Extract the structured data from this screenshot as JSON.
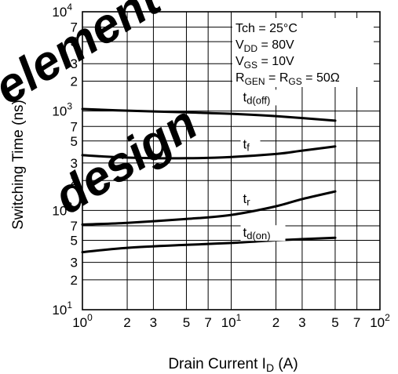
{
  "chart_data": {
    "type": "line",
    "xscale": "log",
    "yscale": "log",
    "xlim": [
      1,
      100
    ],
    "ylim": [
      10,
      10000
    ],
    "grid": true,
    "xlabel": "Drain Current",
    "xlabel_symbol": "I",
    "xlabel_sub": "D",
    "xlabel_unit": "(A)",
    "ylabel": "Switching Time  (ns)",
    "x_ticks": [
      {
        "v": 1,
        "base": "10",
        "exp": "0"
      },
      {
        "v": 2,
        "base": "2",
        "exp": ""
      },
      {
        "v": 3,
        "base": "3",
        "exp": ""
      },
      {
        "v": 5,
        "base": "5",
        "exp": ""
      },
      {
        "v": 7,
        "base": "7",
        "exp": ""
      },
      {
        "v": 10,
        "base": "10",
        "exp": "1"
      },
      {
        "v": 20,
        "base": "2",
        "exp": ""
      },
      {
        "v": 30,
        "base": "3",
        "exp": ""
      },
      {
        "v": 50,
        "base": "5",
        "exp": ""
      },
      {
        "v": 70,
        "base": "7",
        "exp": ""
      },
      {
        "v": 100,
        "base": "10",
        "exp": "2"
      }
    ],
    "y_ticks": [
      {
        "v": 10,
        "base": "10",
        "exp": "1"
      },
      {
        "v": 20,
        "base": "2",
        "exp": ""
      },
      {
        "v": 30,
        "base": "3",
        "exp": ""
      },
      {
        "v": 50,
        "base": "5",
        "exp": ""
      },
      {
        "v": 70,
        "base": "7",
        "exp": ""
      },
      {
        "v": 100,
        "base": "10",
        "exp": "2"
      },
      {
        "v": 200,
        "base": "2",
        "exp": ""
      },
      {
        "v": 300,
        "base": "3",
        "exp": ""
      },
      {
        "v": 500,
        "base": "5",
        "exp": ""
      },
      {
        "v": 700,
        "base": "7",
        "exp": ""
      },
      {
        "v": 1000,
        "base": "10",
        "exp": "3"
      },
      {
        "v": 2000,
        "base": "2",
        "exp": ""
      },
      {
        "v": 3000,
        "base": "3",
        "exp": ""
      },
      {
        "v": 5000,
        "base": "5",
        "exp": ""
      },
      {
        "v": 7000,
        "base": "7",
        "exp": ""
      },
      {
        "v": 10000,
        "base": "10",
        "exp": "4"
      }
    ],
    "conditions": [
      [
        {
          "t": "Tch = 25°C"
        }
      ],
      [
        {
          "t": "V"
        },
        {
          "t": "DD",
          "sub": true
        },
        {
          "t": " = 80V"
        }
      ],
      [
        {
          "t": "V"
        },
        {
          "t": "GS",
          "sub": true
        },
        {
          "t": " = 10V"
        }
      ],
      [
        {
          "t": "R"
        },
        {
          "t": "GEN",
          "sub": true
        },
        {
          "t": " = R"
        },
        {
          "t": "GS",
          "sub": true
        },
        {
          "t": " = 50Ω"
        }
      ]
    ],
    "series": [
      {
        "name": "td(off)",
        "label_base": "t",
        "label_sub": "d(off)",
        "label_at": [
          12,
          1250
        ],
        "x": [
          1,
          2,
          5,
          10,
          20,
          50
        ],
        "y": [
          1050,
          1010,
          970,
          940,
          890,
          800
        ]
      },
      {
        "name": "tf",
        "label_base": "t",
        "label_sub": "f",
        "label_at": [
          12,
          420
        ],
        "x": [
          1,
          2,
          5,
          10,
          20,
          30,
          50
        ],
        "y": [
          360,
          340,
          335,
          345,
          370,
          400,
          440
        ]
      },
      {
        "name": "tr",
        "label_base": "t",
        "label_sub": "r",
        "label_at": [
          12,
          118
        ],
        "x": [
          1,
          2,
          5,
          10,
          20,
          30,
          50
        ],
        "y": [
          72,
          75,
          82,
          90,
          110,
          130,
          155
        ]
      },
      {
        "name": "td(on)",
        "label_base": "t",
        "label_sub": "d(on)",
        "label_at": [
          12,
          54
        ],
        "x": [
          1,
          2,
          5,
          10,
          20,
          50
        ],
        "y": [
          38,
          42,
          45,
          47,
          50,
          53
        ]
      }
    ],
    "watermark": "element design"
  }
}
